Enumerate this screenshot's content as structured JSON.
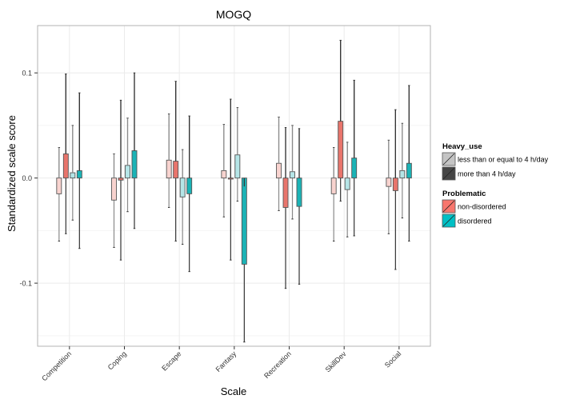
{
  "chart_data": {
    "type": "bar",
    "title": "MOGQ",
    "xlabel": "Scale",
    "ylabel": "Standardized scale score",
    "ylim": [
      -0.16,
      0.145
    ],
    "yticks": [
      -0.1,
      0.0,
      0.1
    ],
    "ytick_labels": [
      "-0.1",
      "0.0",
      "0.1"
    ],
    "grid": true,
    "categories": [
      "Competition",
      "Coping",
      "Escape",
      "Fantasy",
      "Recreation",
      "SkillDev",
      "Social"
    ],
    "series": [
      {
        "name": "non-disordered / less than or equal to 4 h/day",
        "problematic": "non-disordered",
        "heavy_use": "less than or equal to 4 h/day",
        "fill": "#f8d3cf",
        "whisker": "#8a8a8a",
        "values": [
          -0.015,
          -0.021,
          0.017,
          0.007,
          0.014,
          -0.015,
          -0.008
        ],
        "lower": [
          -0.06,
          -0.066,
          -0.028,
          -0.037,
          -0.031,
          -0.06,
          -0.053
        ],
        "upper": [
          0.029,
          0.023,
          0.061,
          0.051,
          0.058,
          0.029,
          0.036
        ]
      },
      {
        "name": "non-disordered / more than 4 h/day",
        "problematic": "non-disordered",
        "heavy_use": "more than 4 h/day",
        "fill": "#e8756c",
        "whisker": "#333333",
        "values": [
          0.023,
          -0.002,
          0.016,
          -0.001,
          -0.028,
          0.054,
          -0.012
        ],
        "lower": [
          -0.053,
          -0.078,
          -0.06,
          -0.078,
          -0.105,
          -0.022,
          -0.087
        ],
        "upper": [
          0.099,
          0.074,
          0.092,
          0.075,
          0.048,
          0.131,
          0.065
        ]
      },
      {
        "name": "disordered / less than or equal to 4 h/day",
        "problematic": "disordered",
        "heavy_use": "less than or equal to 4 h/day",
        "fill": "#b5e5e7",
        "whisker": "#8a8a8a",
        "values": [
          0.005,
          0.012,
          -0.018,
          0.022,
          0.006,
          -0.011,
          0.007
        ],
        "lower": [
          -0.04,
          -0.032,
          -0.063,
          -0.022,
          -0.039,
          -0.056,
          -0.038
        ],
        "upper": [
          0.05,
          0.057,
          0.027,
          0.067,
          0.05,
          0.034,
          0.052
        ]
      },
      {
        "name": "disordered / more than 4 h/day",
        "problematic": "disordered",
        "heavy_use": "more than 4 h/day",
        "fill": "#1bb3b6",
        "whisker": "#333333",
        "values": [
          0.007,
          0.026,
          -0.015,
          -0.082,
          -0.027,
          0.019,
          0.014
        ],
        "lower": [
          -0.067,
          -0.048,
          -0.089,
          -0.156,
          -0.101,
          -0.055,
          -0.06
        ],
        "upper": [
          0.081,
          0.1,
          0.059,
          -0.008,
          0.047,
          0.093,
          0.088
        ]
      }
    ],
    "legend": {
      "placement": "right",
      "groups": [
        {
          "title": "Heavy_use",
          "items": [
            {
              "label": "less than or equal to 4 h/day",
              "color": "#c4c4c4"
            },
            {
              "label": "more than 4 h/day",
              "color": "#454545"
            }
          ]
        },
        {
          "title": "Problematic",
          "items": [
            {
              "label": "non-disordered",
              "color": "#f8766d"
            },
            {
              "label": "disordered",
              "color": "#00bfc4"
            }
          ]
        }
      ]
    }
  }
}
